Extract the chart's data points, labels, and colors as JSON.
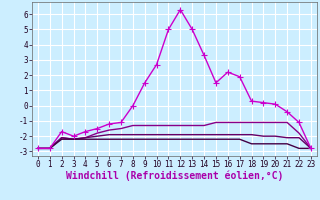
{
  "xlabel": "Windchill (Refroidissement éolien,°C)",
  "ylabel": "",
  "background_color": "#cceeff",
  "grid_color": "#ffffff",
  "line_color": "#aa00aa",
  "xlim": [
    -0.5,
    23.5
  ],
  "ylim": [
    -3.3,
    6.8
  ],
  "yticks": [
    -3,
    -2,
    -1,
    0,
    1,
    2,
    3,
    4,
    5,
    6
  ],
  "xticks": [
    0,
    1,
    2,
    3,
    4,
    5,
    6,
    7,
    8,
    9,
    10,
    11,
    12,
    13,
    14,
    15,
    16,
    17,
    18,
    19,
    20,
    21,
    22,
    23
  ],
  "series": [
    {
      "x": [
        0,
        1,
        2,
        3,
        4,
        5,
        6,
        7,
        8,
        9,
        10,
        11,
        12,
        13,
        14,
        15,
        16,
        17,
        18,
        19,
        20,
        21,
        22,
        23
      ],
      "y": [
        -2.8,
        -2.8,
        -1.7,
        -2.0,
        -1.7,
        -1.5,
        -1.2,
        -1.1,
        0.0,
        1.5,
        2.7,
        5.0,
        6.3,
        5.0,
        3.3,
        1.5,
        2.2,
        1.9,
        0.3,
        0.2,
        0.1,
        -0.4,
        -1.1,
        -2.8
      ],
      "marker": "+",
      "linewidth": 1.0,
      "markersize": 4,
      "color": "#cc00cc"
    },
    {
      "x": [
        0,
        1,
        2,
        3,
        4,
        5,
        6,
        7,
        8,
        9,
        10,
        11,
        12,
        13,
        14,
        15,
        16,
        17,
        18,
        19,
        20,
        21,
        22,
        23
      ],
      "y": [
        -2.8,
        -2.8,
        -2.1,
        -2.2,
        -2.1,
        -1.8,
        -1.6,
        -1.5,
        -1.3,
        -1.3,
        -1.3,
        -1.3,
        -1.3,
        -1.3,
        -1.3,
        -1.1,
        -1.1,
        -1.1,
        -1.1,
        -1.1,
        -1.1,
        -1.1,
        -1.8,
        -2.8
      ],
      "marker": null,
      "linewidth": 1.0,
      "markersize": 0,
      "color": "#880088"
    },
    {
      "x": [
        0,
        1,
        2,
        3,
        4,
        5,
        6,
        7,
        8,
        9,
        10,
        11,
        12,
        13,
        14,
        15,
        16,
        17,
        18,
        19,
        20,
        21,
        22,
        23
      ],
      "y": [
        -2.8,
        -2.8,
        -2.1,
        -2.2,
        -2.1,
        -2.0,
        -1.9,
        -1.9,
        -1.9,
        -1.9,
        -1.9,
        -1.9,
        -1.9,
        -1.9,
        -1.9,
        -1.9,
        -1.9,
        -1.9,
        -1.9,
        -2.0,
        -2.0,
        -2.1,
        -2.1,
        -2.8
      ],
      "marker": null,
      "linewidth": 1.0,
      "markersize": 0,
      "color": "#660066"
    },
    {
      "x": [
        0,
        1,
        2,
        3,
        4,
        5,
        6,
        7,
        8,
        9,
        10,
        11,
        12,
        13,
        14,
        15,
        16,
        17,
        18,
        19,
        20,
        21,
        22,
        23
      ],
      "y": [
        -2.8,
        -2.8,
        -2.2,
        -2.2,
        -2.2,
        -2.2,
        -2.2,
        -2.2,
        -2.2,
        -2.2,
        -2.2,
        -2.2,
        -2.2,
        -2.2,
        -2.2,
        -2.2,
        -2.2,
        -2.2,
        -2.5,
        -2.5,
        -2.5,
        -2.5,
        -2.8,
        -2.8
      ],
      "marker": null,
      "linewidth": 1.0,
      "markersize": 0,
      "color": "#440044"
    }
  ],
  "tick_fontsize": 5.5,
  "xlabel_fontsize": 7.0,
  "title_fontsize": 7.5
}
